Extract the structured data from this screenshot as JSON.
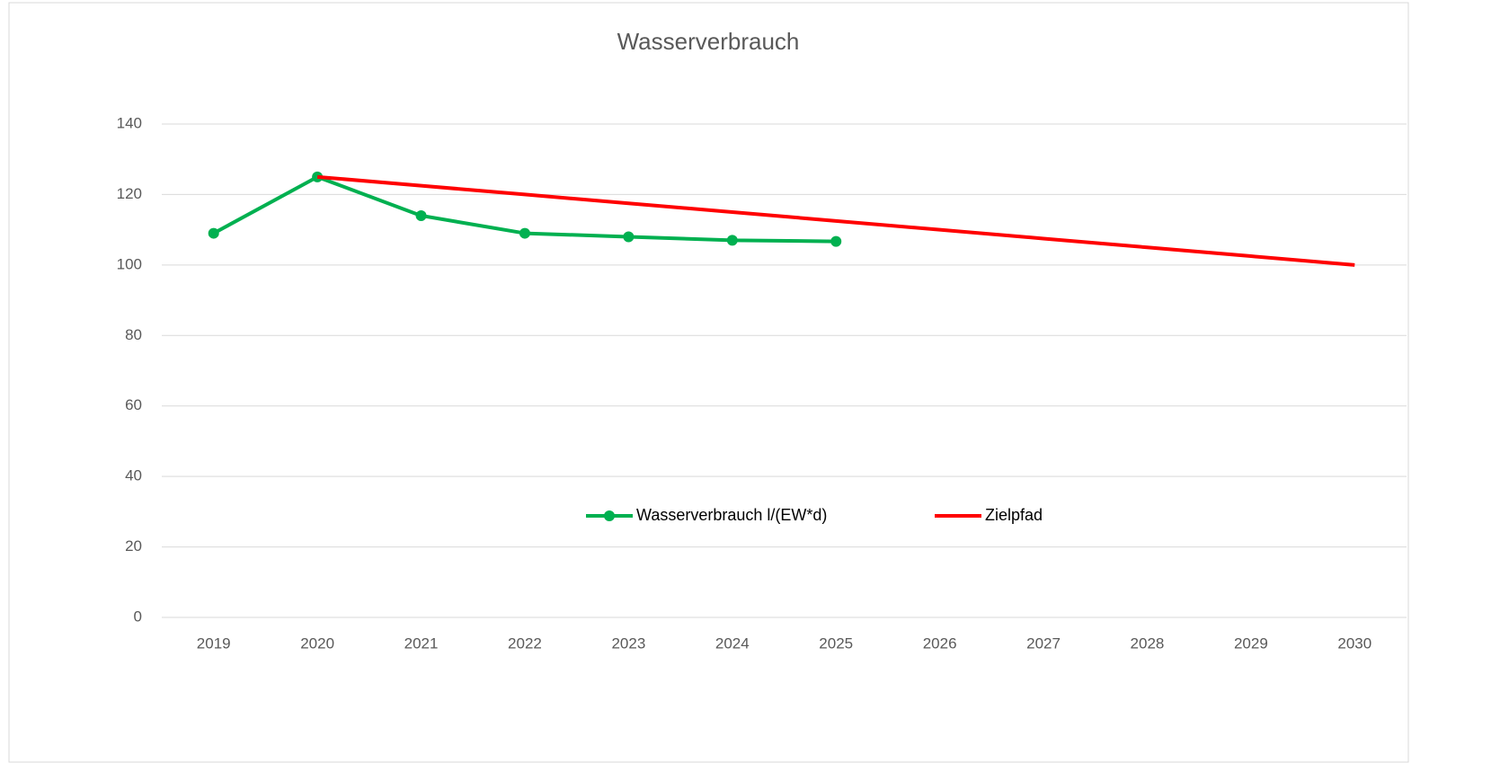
{
  "chart_data": {
    "type": "line",
    "title": "Wasserverbrauch",
    "categories": [
      "2019",
      "2020",
      "2021",
      "2022",
      "2023",
      "2024",
      "2025",
      "2026",
      "2027",
      "2028",
      "2029",
      "2030"
    ],
    "series": [
      {
        "name": "Wasserverbrauch l/(EW*d)",
        "color": "#00b050",
        "markers": true,
        "values": [
          109,
          125,
          114,
          109,
          108,
          107,
          106.7,
          null,
          null,
          null,
          null,
          null
        ]
      },
      {
        "name": "Zielpfad",
        "color": "#ff0000",
        "markers": false,
        "values": [
          null,
          125,
          122.5,
          120,
          117.5,
          115,
          112.5,
          110,
          107.5,
          105,
          102.5,
          100
        ]
      }
    ],
    "ylim": [
      0,
      140
    ],
    "yticks": [
      0,
      20,
      40,
      60,
      80,
      100,
      120,
      140
    ],
    "grid": true,
    "legend": "bottom"
  }
}
